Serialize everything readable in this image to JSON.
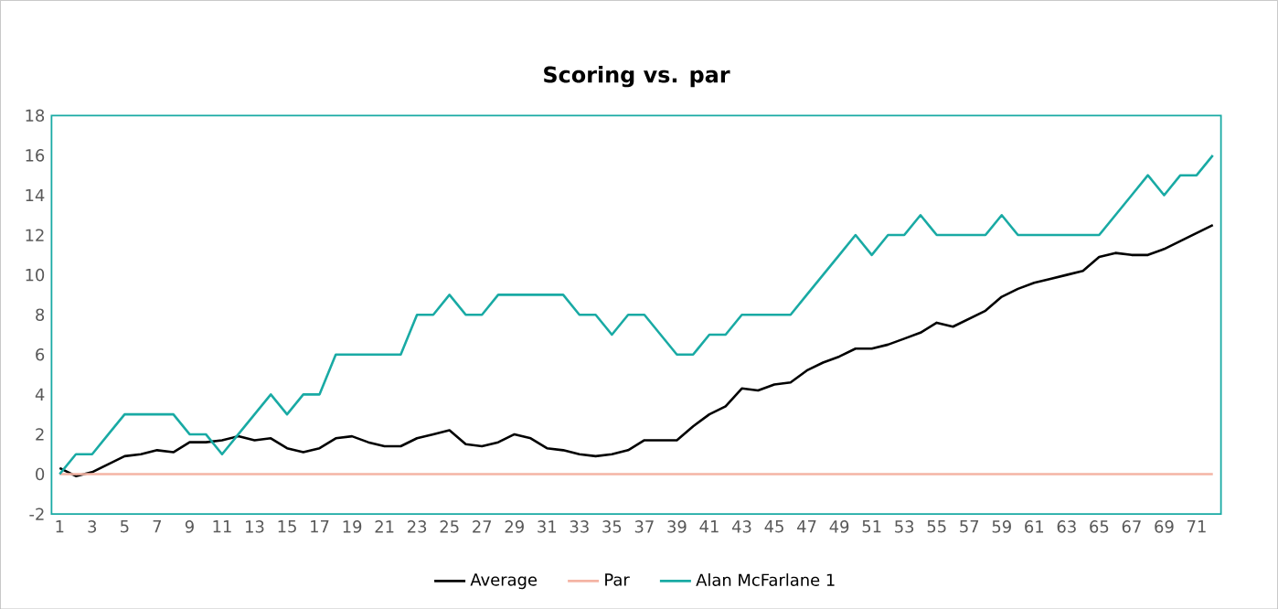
{
  "chart_data": {
    "type": "line",
    "title": "Scoring vs. par",
    "categories": [
      "1",
      null,
      "3",
      null,
      "5",
      null,
      "7",
      null,
      "9",
      null,
      "11",
      null,
      "13",
      null,
      "15",
      null,
      "17",
      null,
      "19",
      null,
      "21",
      null,
      "23",
      null,
      "25",
      null,
      "27",
      null,
      "29",
      null,
      "31",
      null,
      "33",
      null,
      "35",
      null,
      "37",
      null,
      "39",
      null,
      "41",
      null,
      "43",
      null,
      "45",
      null,
      "47",
      null,
      "49",
      null,
      "51",
      null,
      "53",
      null,
      "55",
      null,
      "57",
      null,
      "59",
      null,
      "61",
      null,
      "63",
      null,
      "65",
      null,
      "67",
      null,
      "69",
      null,
      "71",
      null
    ],
    "series": [
      {
        "name": "Average",
        "color": "#000000",
        "values": [
          0.3,
          -0.1,
          0.1,
          0.5,
          0.9,
          1.0,
          1.2,
          1.1,
          1.6,
          1.6,
          1.7,
          1.9,
          1.7,
          1.8,
          1.3,
          1.1,
          1.3,
          1.8,
          1.9,
          1.6,
          1.4,
          1.4,
          1.8,
          2.0,
          2.2,
          1.5,
          1.4,
          1.6,
          2.0,
          1.8,
          1.3,
          1.2,
          1.0,
          0.9,
          1.0,
          1.2,
          1.7,
          1.7,
          1.7,
          2.4,
          3.0,
          3.4,
          4.3,
          4.2,
          4.5,
          4.6,
          5.2,
          5.6,
          5.9,
          6.3,
          6.3,
          6.5,
          6.8,
          7.1,
          7.6,
          7.4,
          7.8,
          8.2,
          8.9,
          9.3,
          9.6,
          9.8,
          10.0,
          10.2,
          10.9,
          11.1,
          11.0,
          11.0,
          11.3,
          11.7,
          12.1,
          12.5
        ]
      },
      {
        "name": "Par",
        "color": "#f4b4a4",
        "values": [
          0,
          0,
          0,
          0,
          0,
          0,
          0,
          0,
          0,
          0,
          0,
          0,
          0,
          0,
          0,
          0,
          0,
          0,
          0,
          0,
          0,
          0,
          0,
          0,
          0,
          0,
          0,
          0,
          0,
          0,
          0,
          0,
          0,
          0,
          0,
          0,
          0,
          0,
          0,
          0,
          0,
          0,
          0,
          0,
          0,
          0,
          0,
          0,
          0,
          0,
          0,
          0,
          0,
          0,
          0,
          0,
          0,
          0,
          0,
          0,
          0,
          0,
          0,
          0,
          0,
          0,
          0,
          0,
          0,
          0,
          0,
          0
        ]
      },
      {
        "name": "Alan McFarlane  1",
        "color": "#19aaa4",
        "values": [
          0,
          1,
          1,
          2,
          3,
          3,
          3,
          3,
          2,
          2,
          1,
          2,
          3,
          4,
          3,
          4,
          4,
          6,
          6,
          6,
          6,
          6,
          8,
          8,
          9,
          8,
          8,
          9,
          9,
          9,
          9,
          9,
          8,
          8,
          7,
          8,
          8,
          7,
          6,
          6,
          7,
          7,
          8,
          8,
          8,
          8,
          9,
          10,
          11,
          12,
          11,
          12,
          12,
          13,
          12,
          12,
          12,
          12,
          13,
          12,
          12,
          12,
          12,
          12,
          12,
          13,
          14,
          15,
          14,
          15,
          15,
          16
        ]
      }
    ],
    "ylim": [
      -2,
      18
    ],
    "yticks": [
      -2,
      0,
      2,
      4,
      6,
      8,
      10,
      12,
      14,
      16,
      18
    ],
    "grid": false,
    "legend": "bottom",
    "marker": "none",
    "line_style": "solid"
  }
}
